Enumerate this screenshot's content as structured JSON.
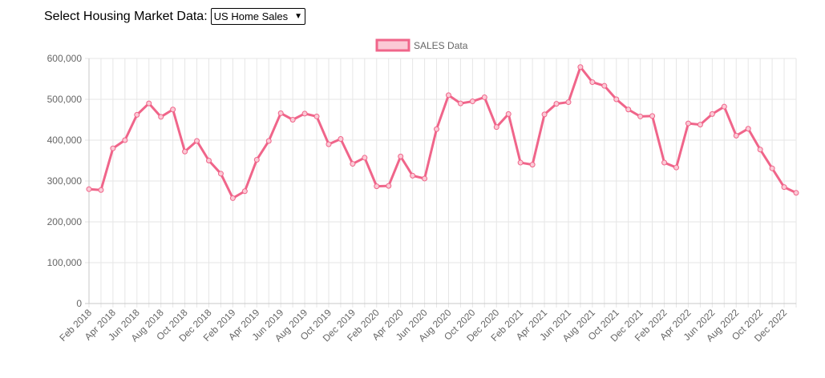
{
  "controls": {
    "label": "Select Housing Market Data:",
    "selected": "US Home Sales"
  },
  "colors": {
    "line": "#f0658a",
    "fill": "#fbc9d5",
    "grid": "#e6e6e6",
    "axis": "#c8c8c8"
  },
  "chart_data": {
    "type": "line",
    "ylim": [
      0,
      600000
    ],
    "yticks": [
      "0",
      "100,000",
      "200,000",
      "300,000",
      "400,000",
      "500,000",
      "600,000"
    ],
    "grid": true,
    "legend_position": "top",
    "x": [
      "Feb 2018",
      "Mar 2018",
      "Apr 2018",
      "May 2018",
      "Jun 2018",
      "Jul 2018",
      "Aug 2018",
      "Sep 2018",
      "Oct 2018",
      "Nov 2018",
      "Dec 2018",
      "Jan 2019",
      "Feb 2019",
      "Mar 2019",
      "Apr 2019",
      "May 2019",
      "Jun 2019",
      "Jul 2019",
      "Aug 2019",
      "Sep 2019",
      "Oct 2019",
      "Nov 2019",
      "Dec 2019",
      "Jan 2020",
      "Feb 2020",
      "Mar 2020",
      "Apr 2020",
      "May 2020",
      "Jun 2020",
      "Jul 2020",
      "Aug 2020",
      "Sep 2020",
      "Oct 2020",
      "Nov 2020",
      "Dec 2020",
      "Jan 2021",
      "Feb 2021",
      "Mar 2021",
      "Apr 2021",
      "May 2021",
      "Jun 2021",
      "Jul 2021",
      "Aug 2021",
      "Sep 2021",
      "Oct 2021",
      "Nov 2021",
      "Dec 2021",
      "Jan 2022",
      "Feb 2022",
      "Mar 2022",
      "Apr 2022",
      "May 2022",
      "Jun 2022",
      "Jul 2022",
      "Aug 2022",
      "Sep 2022",
      "Oct 2022",
      "Nov 2022",
      "Dec 2022",
      "Jan 2023"
    ],
    "xtick_labels": [
      "Feb 2018",
      "Apr 2018",
      "Jun 2018",
      "Aug 2018",
      "Oct 2018",
      "Dec 2018",
      "Feb 2019",
      "Apr 2019",
      "Jun 2019",
      "Aug 2019",
      "Oct 2019",
      "Dec 2019",
      "Feb 2020",
      "Apr 2020",
      "Jun 2020",
      "Aug 2020",
      "Oct 2020",
      "Dec 2020",
      "Feb 2021",
      "Apr 2021",
      "Jun 2021",
      "Aug 2021",
      "Oct 2021",
      "Dec 2021",
      "Feb 2022",
      "Apr 2022",
      "Jun 2022",
      "Aug 2022",
      "Oct 2022",
      "Dec 2022"
    ],
    "series": [
      {
        "name": "SALES Data",
        "values": [
          280000,
          278000,
          380000,
          400000,
          462000,
          490000,
          457000,
          475000,
          372000,
          398000,
          350000,
          318000,
          258000,
          275000,
          352000,
          398000,
          466000,
          450000,
          465000,
          458000,
          390000,
          403000,
          342000,
          357000,
          287000,
          288000,
          360000,
          313000,
          306000,
          427000,
          510000,
          490000,
          495000,
          505000,
          432000,
          464000,
          345000,
          340000,
          463000,
          489000,
          493000,
          579000,
          542000,
          533000,
          500000,
          475000,
          458000,
          459000,
          345000,
          333000,
          441000,
          438000,
          464000,
          482000,
          411000,
          428000,
          377000,
          331000,
          285000,
          271000
        ]
      }
    ]
  }
}
